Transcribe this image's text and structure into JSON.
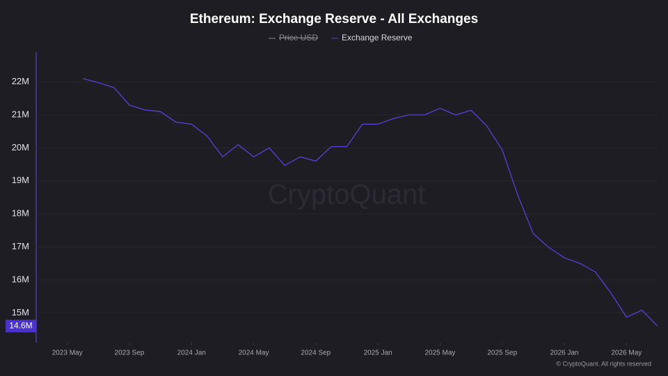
{
  "chart_data": {
    "type": "line",
    "title": "Ethereum: Exchange Reserve - All Exchanges",
    "watermark": "CryptoQuant",
    "footer": "© CryptoQuant. All rights reserved",
    "hidden_series": [
      {
        "name": "Price USD",
        "color": "#8a8a8a"
      }
    ],
    "x": [
      "2023-06",
      "2023-07",
      "2023-08",
      "2023-09",
      "2023-10",
      "2023-11",
      "2023-12",
      "2024-01",
      "2024-02",
      "2024-03",
      "2024-04",
      "2024-05",
      "2024-06",
      "2024-07",
      "2024-08",
      "2024-09",
      "2024-10",
      "2024-11",
      "2024-12",
      "2025-01",
      "2025-02",
      "2025-03",
      "2025-04",
      "2025-05",
      "2025-06",
      "2025-07",
      "2025-08",
      "2025-09",
      "2025-10",
      "2025-11",
      "2025-12",
      "2026-01",
      "2026-02",
      "2026-03",
      "2026-04",
      "2026-05",
      "2026-06",
      "2026-07"
    ],
    "series": [
      {
        "name": "Exchange Reserve",
        "color": "#5b3fd6",
        "values": [
          22.1,
          21.98,
          21.83,
          21.3,
          21.15,
          21.1,
          20.78,
          20.72,
          20.36,
          19.73,
          20.1,
          19.73,
          20.0,
          19.47,
          19.73,
          19.6,
          20.04,
          20.04,
          20.72,
          20.72,
          20.89,
          21.0,
          21.0,
          21.2,
          21.0,
          21.14,
          20.67,
          19.94,
          18.57,
          17.4,
          16.98,
          16.67,
          16.5,
          16.24,
          15.6,
          14.87,
          15.08,
          14.6
        ]
      }
    ],
    "current_value": {
      "value": 14.6,
      "label": "14.6M"
    },
    "xlim": [
      "2023-03",
      "2026-07"
    ],
    "xticks": [
      {
        "value": "2023-05",
        "label": "2023 May"
      },
      {
        "value": "2023-09",
        "label": "2023 Sep"
      },
      {
        "value": "2024-01",
        "label": "2024 Jan"
      },
      {
        "value": "2024-05",
        "label": "2024 May"
      },
      {
        "value": "2024-09",
        "label": "2024 Sep"
      },
      {
        "value": "2025-01",
        "label": "2025 Jan"
      },
      {
        "value": "2025-05",
        "label": "2025 May"
      },
      {
        "value": "2025-09",
        "label": "2025 Sep"
      },
      {
        "value": "2026-01",
        "label": "2026 Jan"
      },
      {
        "value": "2026-05",
        "label": "2026 May"
      }
    ],
    "ylim": [
      14.1,
      22.9
    ],
    "yticks": [
      {
        "value": 15,
        "label": "15M"
      },
      {
        "value": 16,
        "label": "16M"
      },
      {
        "value": 17,
        "label": "17M"
      },
      {
        "value": 18,
        "label": "18M"
      },
      {
        "value": 19,
        "label": "19M"
      },
      {
        "value": 20,
        "label": "20M"
      },
      {
        "value": 21,
        "label": "21M"
      },
      {
        "value": 22,
        "label": "22M"
      }
    ],
    "grid": true
  }
}
